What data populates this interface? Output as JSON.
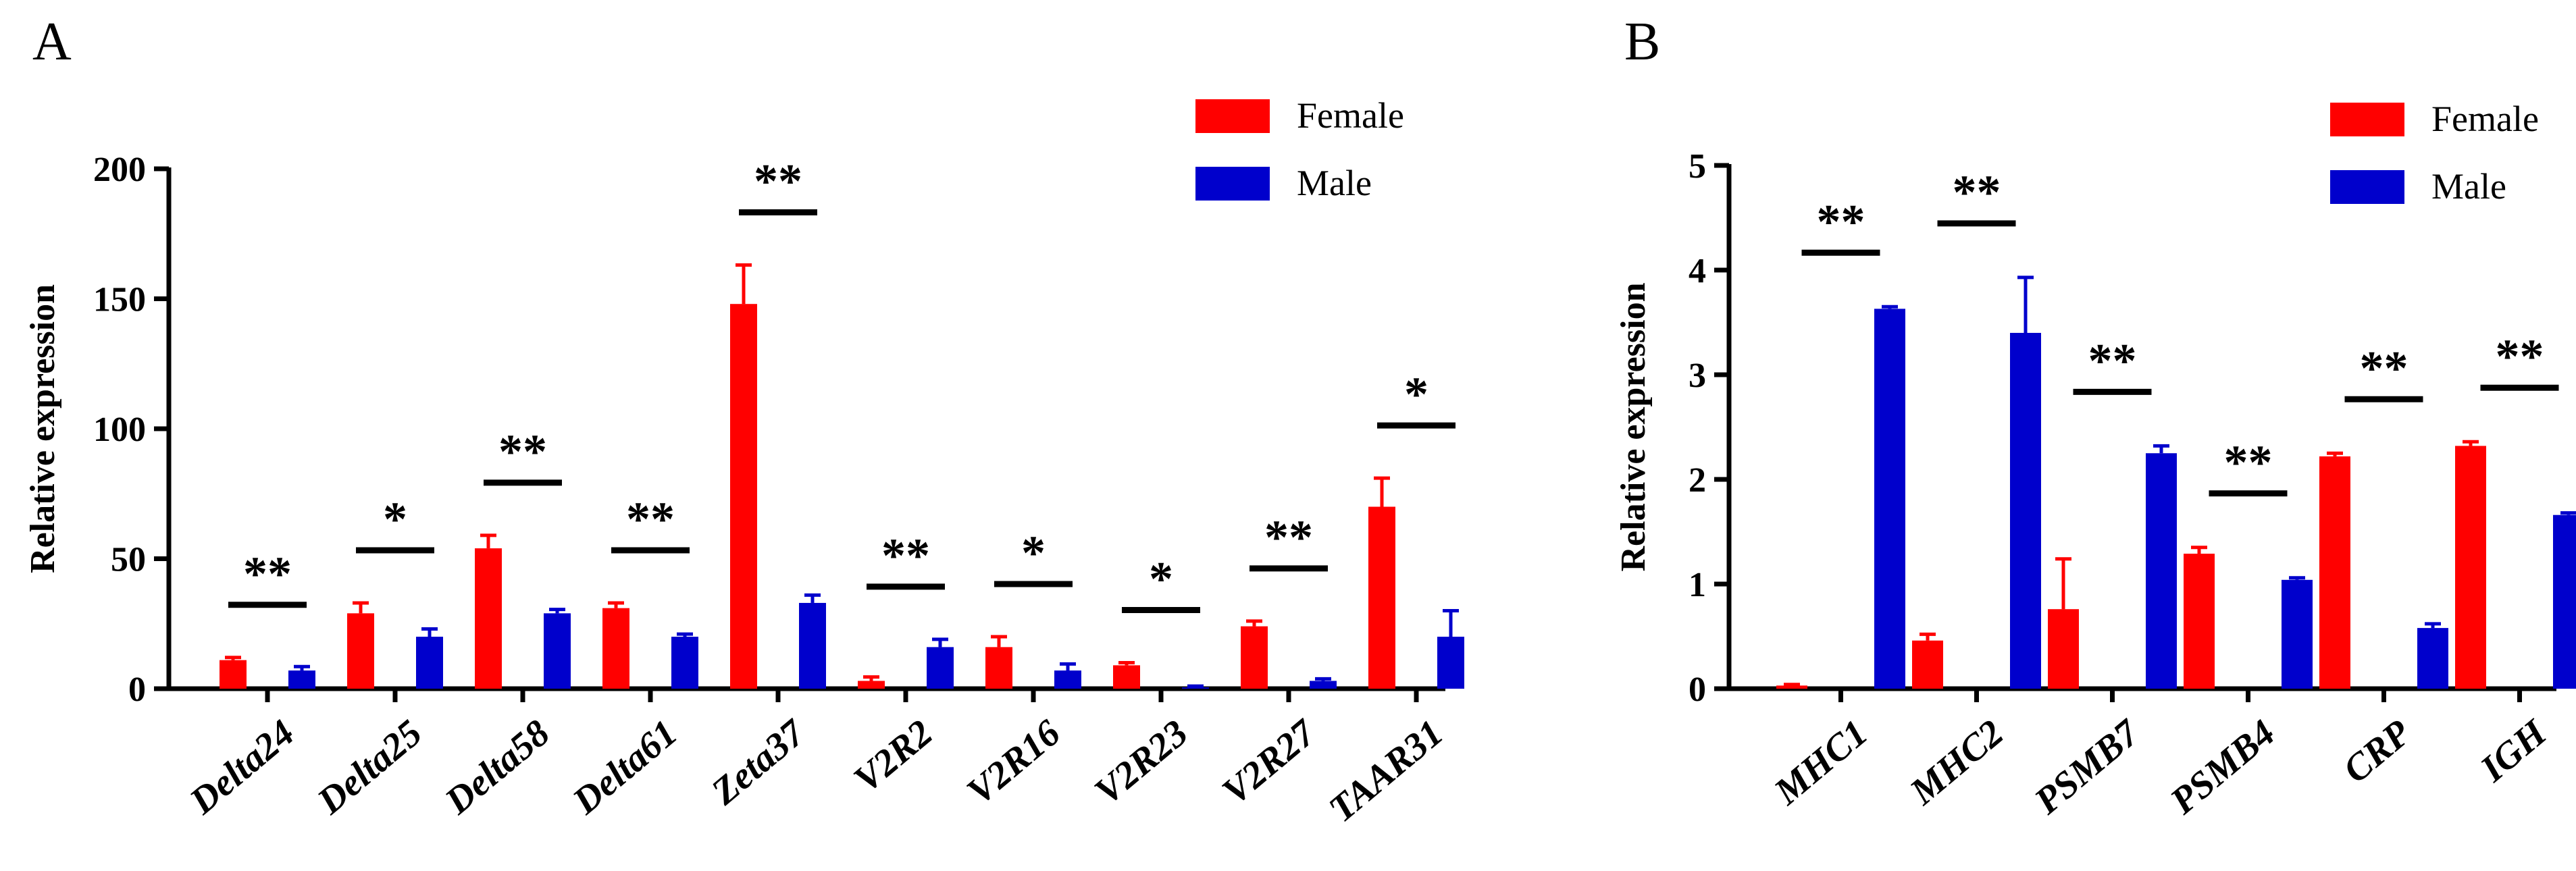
{
  "chart_data": [
    {
      "panel": "A",
      "type": "bar",
      "title": "",
      "xlabel": "",
      "ylabel": "Relative expression",
      "ylim": [
        0,
        200
      ],
      "yticks": [
        0,
        50,
        100,
        150,
        200
      ],
      "categories": [
        "Delta24",
        "Delta25",
        "Delta58",
        "Delta61",
        "Zeta37",
        "V2R2",
        "V2R16",
        "V2R23",
        "V2R27",
        "TAAR31"
      ],
      "series": [
        {
          "name": "Female",
          "color": "#ff0000",
          "values": [
            11,
            29,
            54,
            31,
            148,
            3,
            16,
            9,
            24,
            70
          ],
          "errors": [
            1,
            4,
            5,
            2,
            15,
            1.5,
            4,
            1,
            2,
            11
          ]
        },
        {
          "name": "Male",
          "color": "#0000cc",
          "values": [
            7,
            20,
            29,
            20,
            33,
            16,
            7,
            0.5,
            3,
            20
          ],
          "errors": [
            1.5,
            3,
            1.5,
            1,
            3,
            3,
            2.5,
            0.5,
            0.8,
            10
          ]
        }
      ],
      "significance": [
        "**",
        "*",
        "**",
        "**",
        "**",
        "**",
        "*",
        "*",
        "**",
        "*"
      ],
      "legend": {
        "position": "top-right",
        "entries": [
          "Female",
          "Male"
        ]
      }
    },
    {
      "panel": "B",
      "type": "bar",
      "title": "",
      "xlabel": "",
      "ylabel": "Relative expression",
      "ylim": [
        0,
        5
      ],
      "yticks": [
        0,
        1,
        2,
        3,
        4,
        5
      ],
      "categories": [
        "MHC1",
        "MHC2",
        "PSMB7",
        "PSMB4",
        "CRP",
        "IGH"
      ],
      "series": [
        {
          "name": "Female",
          "color": "#ff0000",
          "values": [
            0.03,
            0.46,
            0.76,
            1.29,
            2.22,
            2.32
          ],
          "errors": [
            0.01,
            0.06,
            0.48,
            0.06,
            0.03,
            0.04
          ]
        },
        {
          "name": "Male",
          "color": "#0000cc",
          "values": [
            3.63,
            3.4,
            2.25,
            1.04,
            0.58,
            1.66
          ],
          "errors": [
            0.02,
            0.53,
            0.07,
            0.02,
            0.04,
            0.02
          ]
        }
      ],
      "significance": [
        "**",
        "**",
        "**",
        "**",
        "**",
        "**"
      ],
      "legend": {
        "position": "top-right",
        "entries": [
          "Female",
          "Male"
        ]
      }
    }
  ]
}
